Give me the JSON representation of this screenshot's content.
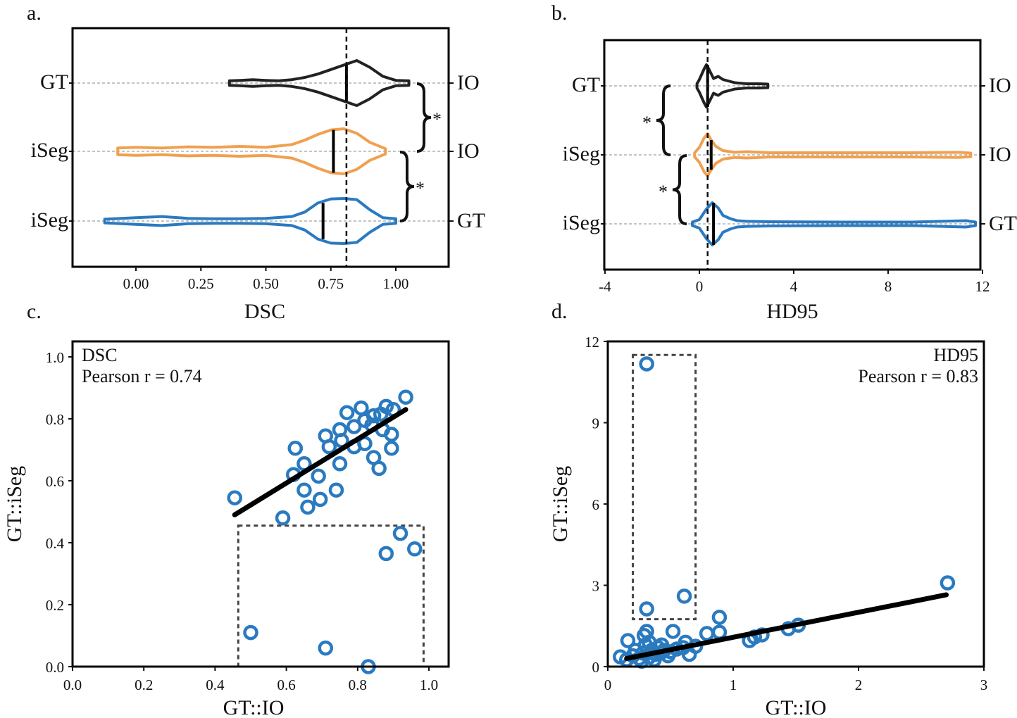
{
  "colors": {
    "black": "#222222",
    "orange": "#F0A050",
    "blue": "#2A7AC0"
  },
  "chart_data": [
    {
      "panel": "a.",
      "type": "violin",
      "xlabel": "DSC",
      "xticks": [
        0,
        0.25,
        0.5,
        0.75,
        1.0
      ],
      "xtick_labels": [
        "0.00",
        "0.25",
        "0.50",
        "0.75",
        "1.00"
      ],
      "xlim": [
        -0.25,
        1.2
      ],
      "reference_line": 0.81,
      "rows": [
        {
          "left": "GT",
          "right": "IO",
          "color": "black",
          "median": 0.81,
          "x": [
            0.36,
            0.4,
            0.45,
            0.5,
            0.55,
            0.6,
            0.65,
            0.7,
            0.75,
            0.8,
            0.85,
            0.9,
            0.95,
            1.0,
            1.05
          ],
          "density": [
            0.1,
            0.12,
            0.15,
            0.12,
            0.1,
            0.15,
            0.25,
            0.4,
            0.6,
            0.8,
            1.0,
            0.7,
            0.3,
            0.12,
            0.1
          ]
        },
        {
          "left": "iSeg",
          "right": "IO",
          "color": "orange",
          "median": 0.76,
          "x": [
            -0.07,
            0.0,
            0.1,
            0.2,
            0.3,
            0.4,
            0.5,
            0.6,
            0.65,
            0.7,
            0.75,
            0.8,
            0.85,
            0.9,
            0.96
          ],
          "density": [
            0.15,
            0.18,
            0.15,
            0.2,
            0.18,
            0.22,
            0.18,
            0.3,
            0.5,
            0.75,
            0.95,
            1.0,
            0.8,
            0.4,
            0.12
          ]
        },
        {
          "left": "iSeg",
          "right": "GT",
          "color": "blue",
          "median": 0.72,
          "x": [
            -0.12,
            0,
            0.1,
            0.2,
            0.3,
            0.4,
            0.5,
            0.6,
            0.65,
            0.7,
            0.75,
            0.8,
            0.85,
            0.9,
            0.95,
            1.0
          ],
          "density": [
            0.08,
            0.15,
            0.2,
            0.12,
            0.1,
            0.1,
            0.12,
            0.2,
            0.4,
            0.8,
            0.98,
            1.0,
            0.95,
            0.5,
            0.15,
            0.1
          ]
        }
      ],
      "significance": [
        "*",
        "*"
      ]
    },
    {
      "panel": "b.",
      "type": "violin",
      "xlabel": "HD95",
      "xticks": [
        -4,
        0,
        4,
        8,
        12
      ],
      "xtick_labels": [
        "-4",
        "0",
        "4",
        "8",
        "12"
      ],
      "xlim": [
        -4,
        12
      ],
      "reference_line": 0.35,
      "rows": [
        {
          "left": "GT",
          "right": "IO",
          "color": "black",
          "median": 0.35,
          "x": [
            -0.1,
            0,
            0.2,
            0.3,
            0.4,
            0.6,
            0.8,
            1.0,
            1.5,
            2,
            2.5,
            2.9
          ],
          "density": [
            0.1,
            0.3,
            0.8,
            1.0,
            0.8,
            0.35,
            0.45,
            0.3,
            0.15,
            0.1,
            0.1,
            0.08
          ]
        },
        {
          "left": "iSeg",
          "right": "IO",
          "color": "orange",
          "median": 0.5,
          "x": [
            -0.2,
            0,
            0.2,
            0.35,
            0.5,
            0.7,
            1,
            1.5,
            2,
            3,
            6,
            9,
            11,
            11.5
          ],
          "density": [
            0.1,
            0.35,
            0.8,
            1.0,
            0.7,
            0.4,
            0.2,
            0.12,
            0.15,
            0.1,
            0.1,
            0.1,
            0.12,
            0.08
          ]
        },
        {
          "left": "iSeg",
          "right": "GT",
          "color": "blue",
          "median": 0.6,
          "x": [
            -0.3,
            0,
            0.3,
            0.55,
            0.8,
            1.0,
            1.3,
            1.6,
            2,
            3,
            6,
            9,
            11.3,
            11.7
          ],
          "density": [
            0.08,
            0.2,
            0.7,
            1.0,
            0.75,
            0.4,
            0.25,
            0.15,
            0.12,
            0.1,
            0.08,
            0.08,
            0.15,
            0.08
          ]
        }
      ],
      "significance": [
        "*",
        "*"
      ]
    },
    {
      "panel": "c.",
      "type": "scatter",
      "xlabel": "GT::IO",
      "ylabel": "GT::iSeg",
      "xlim": [
        0,
        1.05
      ],
      "ylim": [
        0,
        1.05
      ],
      "xticks": [
        0,
        0.2,
        0.4,
        0.6,
        0.8,
        1.0
      ],
      "xtick_labels": [
        "0.0",
        "0.2",
        "0.4",
        "0.6",
        "0.8",
        "1.0"
      ],
      "yticks": [
        0,
        0.2,
        0.4,
        0.6,
        0.8,
        1.0
      ],
      "ytick_labels": [
        "0.0",
        "0.2",
        "0.4",
        "0.6",
        "0.8",
        "1.0"
      ],
      "annotation": [
        "DSC",
        "Pearson r = 0.74"
      ],
      "annotation_align": "left",
      "points": [
        [
          0.455,
          0.545
        ],
        [
          0.59,
          0.48
        ],
        [
          0.625,
          0.705
        ],
        [
          0.62,
          0.62
        ],
        [
          0.65,
          0.655
        ],
        [
          0.65,
          0.57
        ],
        [
          0.66,
          0.515
        ],
        [
          0.69,
          0.615
        ],
        [
          0.695,
          0.54
        ],
        [
          0.74,
          0.57
        ],
        [
          0.71,
          0.745
        ],
        [
          0.72,
          0.71
        ],
        [
          0.75,
          0.655
        ],
        [
          0.75,
          0.765
        ],
        [
          0.755,
          0.73
        ],
        [
          0.77,
          0.82
        ],
        [
          0.79,
          0.775
        ],
        [
          0.79,
          0.71
        ],
        [
          0.81,
          0.835
        ],
        [
          0.82,
          0.72
        ],
        [
          0.82,
          0.795
        ],
        [
          0.84,
          0.78
        ],
        [
          0.845,
          0.81
        ],
        [
          0.845,
          0.675
        ],
        [
          0.86,
          0.64
        ],
        [
          0.87,
          0.765
        ],
        [
          0.88,
          0.84
        ],
        [
          0.895,
          0.75
        ],
        [
          0.895,
          0.705
        ],
        [
          0.865,
          0.815
        ],
        [
          0.9,
          0.83
        ],
        [
          0.935,
          0.87
        ],
        [
          0.5,
          0.11
        ],
        [
          0.71,
          0.06
        ],
        [
          0.83,
          0.0
        ],
        [
          0.88,
          0.365
        ],
        [
          0.92,
          0.43
        ],
        [
          0.96,
          0.38
        ]
      ],
      "fit_line": [
        [
          0.455,
          0.49
        ],
        [
          0.935,
          0.83
        ]
      ],
      "outlier_box": [
        [
          0.465,
          0
        ],
        [
          0.985,
          0.455
        ]
      ]
    },
    {
      "panel": "d.",
      "type": "scatter",
      "xlabel": "GT::IO",
      "ylabel": "GT::iSeg",
      "xlim": [
        0,
        3
      ],
      "ylim": [
        0,
        12
      ],
      "xticks": [
        0,
        1,
        2,
        3
      ],
      "xtick_labels": [
        "0",
        "1",
        "2",
        "3"
      ],
      "yticks": [
        0,
        3,
        6,
        9,
        12
      ],
      "ytick_labels": [
        "0",
        "3",
        "6",
        "9",
        "12"
      ],
      "annotation": [
        "HD95",
        "Pearson r = 0.83"
      ],
      "annotation_align": "right",
      "points": [
        [
          0.31,
          11.17
        ],
        [
          0.31,
          2.13
        ],
        [
          0.61,
          2.6
        ],
        [
          2.71,
          3.09
        ],
        [
          1.52,
          1.53
        ],
        [
          1.44,
          1.4
        ],
        [
          1.23,
          1.17
        ],
        [
          1.17,
          1.09
        ],
        [
          1.13,
          0.96
        ],
        [
          0.89,
          1.82
        ],
        [
          0.89,
          1.27
        ],
        [
          0.79,
          1.22
        ],
        [
          0.52,
          1.3
        ],
        [
          0.31,
          1.3
        ],
        [
          0.29,
          1.15
        ],
        [
          0.16,
          0.96
        ],
        [
          0.1,
          0.36
        ],
        [
          0.15,
          0.25
        ],
        [
          0.2,
          0.4
        ],
        [
          0.22,
          0.6
        ],
        [
          0.25,
          0.3
        ],
        [
          0.28,
          0.5
        ],
        [
          0.3,
          0.8
        ],
        [
          0.33,
          0.35
        ],
        [
          0.35,
          0.6
        ],
        [
          0.38,
          0.45
        ],
        [
          0.4,
          0.7
        ],
        [
          0.42,
          0.5
        ],
        [
          0.45,
          0.6
        ],
        [
          0.48,
          0.4
        ],
        [
          0.5,
          0.55
        ],
        [
          0.55,
          0.65
        ],
        [
          0.6,
          0.7
        ],
        [
          0.62,
          0.9
        ],
        [
          0.65,
          0.45
        ],
        [
          0.7,
          0.75
        ],
        [
          0.27,
          0.2
        ],
        [
          0.33,
          0.9
        ],
        [
          0.37,
          0.25
        ],
        [
          0.43,
          0.8
        ]
      ],
      "fit_line": [
        [
          0.15,
          0.3
        ],
        [
          2.7,
          2.65
        ]
      ],
      "outlier_box": [
        [
          0.2,
          1.75
        ],
        [
          0.7,
          11.5
        ]
      ]
    }
  ]
}
